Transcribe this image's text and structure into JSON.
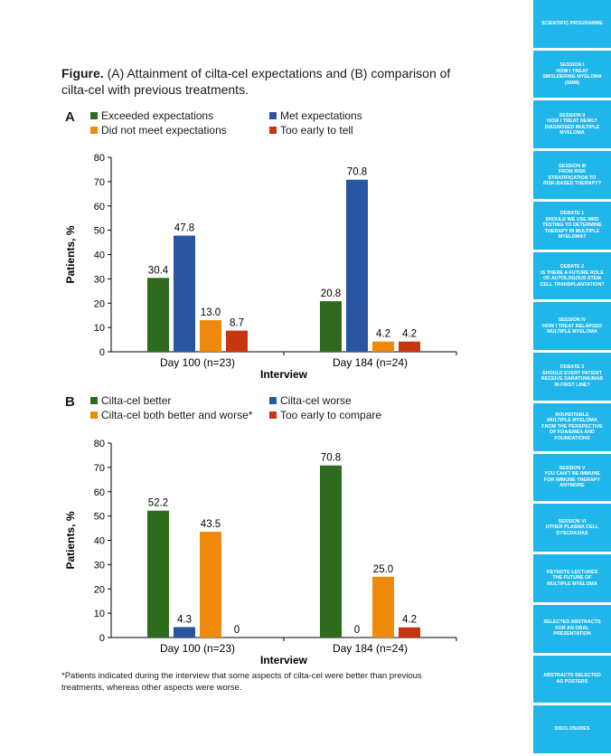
{
  "figure": {
    "title_bold": "Figure.",
    "title_rest": "(A) Attainment of cilta-cel expectations and (B) comparison of cilta-cel with previous treatments."
  },
  "panel_a": {
    "letter": "A",
    "legend": [
      {
        "label": "Exceeded expectations",
        "color": "#2e6b1e"
      },
      {
        "label": "Met expectations",
        "color": "#2a55a3"
      },
      {
        "label": "Did not meet expectations",
        "color": "#f08a0c"
      },
      {
        "label": "Too early to tell",
        "color": "#c7360e"
      }
    ]
  },
  "panel_b": {
    "letter": "B",
    "legend": [
      {
        "label": "Cilta-cel better",
        "color": "#2e6b1e"
      },
      {
        "label": "Cilta-cel worse",
        "color": "#2a55a3"
      },
      {
        "label": "Cilta-cel both better and worse*",
        "color": "#f08a0c"
      },
      {
        "label": "Too early to compare",
        "color": "#c7360e"
      }
    ]
  },
  "chart_data": [
    {
      "type": "bar",
      "categories": [
        "Day 100 (n=23)",
        "Day 184 (n=24)"
      ],
      "series": [
        {
          "name": "Exceeded expectations",
          "values": [
            30.4,
            20.8
          ],
          "labels": [
            "30.4",
            "20.8"
          ],
          "color": "#2e6b1e"
        },
        {
          "name": "Met expectations",
          "values": [
            47.8,
            70.8
          ],
          "labels": [
            "47.8",
            "70.8"
          ],
          "color": "#2a55a3"
        },
        {
          "name": "Did not meet expectations",
          "values": [
            13.0,
            4.2
          ],
          "labels": [
            "13.0",
            "4.2"
          ],
          "color": "#f08a0c"
        },
        {
          "name": "Too early to tell",
          "values": [
            8.7,
            4.2
          ],
          "labels": [
            "8.7",
            "4.2"
          ],
          "color": "#c7360e"
        }
      ],
      "xlabel": "Interview",
      "ylabel": "Patients, %",
      "ylim": [
        0,
        80
      ],
      "yticks": [
        "0",
        "10",
        "20",
        "30",
        "40",
        "50",
        "60",
        "70",
        "80"
      ],
      "grid": false,
      "legend_position": "top"
    },
    {
      "type": "bar",
      "categories": [
        "Day 100 (n=23)",
        "Day 184 (n=24)"
      ],
      "series": [
        {
          "name": "Cilta-cel better",
          "values": [
            52.2,
            70.8
          ],
          "labels": [
            "52.2",
            "70.8"
          ],
          "color": "#2e6b1e"
        },
        {
          "name": "Cilta-cel worse",
          "values": [
            4.3,
            0
          ],
          "labels": [
            "4.3",
            "0"
          ],
          "color": "#2a55a3"
        },
        {
          "name": "Cilta-cel both better and worse*",
          "values": [
            43.5,
            25.0
          ],
          "labels": [
            "43.5",
            "25.0"
          ],
          "color": "#f08a0c"
        },
        {
          "name": "Too early to compare",
          "values": [
            0,
            4.2
          ],
          "labels": [
            "0",
            "4.2"
          ],
          "color": "#c7360e"
        }
      ],
      "xlabel": "Interview",
      "ylabel": "Patients, %",
      "ylim": [
        0,
        80
      ],
      "yticks": [
        "0",
        "10",
        "20",
        "30",
        "40",
        "50",
        "60",
        "70",
        "80"
      ],
      "grid": false,
      "legend_position": "top"
    }
  ],
  "footnote": "*Patients indicated during the interview that some aspects of cilta-cel were better than previous treatments, whereas other aspects were worse.",
  "sidebar": {
    "accent": "#21b6ea",
    "items": [
      {
        "lines": [
          "SCIENTIFIC PROGRAMME"
        ]
      },
      {
        "lines": [
          "SESSION I",
          "HOW I TREAT",
          "SMOLDERING MYELOMA",
          "(SMM)"
        ]
      },
      {
        "lines": [
          "SESSION II",
          "HOW I TREAT NEWLY",
          "DIAGNOSED MULTIPLE",
          "MYELOMA"
        ]
      },
      {
        "lines": [
          "SESSION III",
          "FROM RISK",
          "STRATIFICATION TO",
          "RISK-BASED THERAPY?"
        ]
      },
      {
        "lines": [
          "DEBATE 1",
          "SHOULD WE USE MRD",
          "TESTING TO DETERMINE",
          "THERAPY IN MULTIPLE",
          "MYELOMA?"
        ]
      },
      {
        "lines": [
          "DEBATE 2",
          "IS THERE A FUTURE ROLE",
          "OF AUTOLOGOUS STEM",
          "CELL TRANSPLANTATION?"
        ]
      },
      {
        "lines": [
          "SESSION IV",
          "HOW I TREAT RELAPSED",
          "MULTIPLE MYELOMA"
        ]
      },
      {
        "lines": [
          "DEBATE 3",
          "SHOULD EVERY PATIENT",
          "RECEIVE DARATUMUMAB",
          "IN FIRST LINE?"
        ]
      },
      {
        "lines": [
          "ROUNDTABLE",
          "MULTIPLE MYELOMA",
          "FROM THE PERSPECTIVE",
          "OF FDA/EMEA AND",
          "FOUNDATIONS"
        ]
      },
      {
        "lines": [
          "SESSION V",
          "YOU CAN'T BE IMMUNE",
          "FOR IMMUNE THERAPY",
          "ANYMORE"
        ]
      },
      {
        "lines": [
          "SESSION VI",
          "OTHER PLASMA CELL",
          "DYSCRASIAS"
        ]
      },
      {
        "lines": [
          "KEYNOTE LECTURES",
          "THE FUTURE OF",
          "MULTIPLE MYELOMA"
        ]
      },
      {
        "lines": [
          "SELECTED ABSTRACTS",
          "FOR AN ORAL",
          "PRESENTATION"
        ]
      },
      {
        "lines": [
          "ABSTRACTS SELECTED",
          "AS POSTERS"
        ]
      },
      {
        "lines": [
          "DISCLOSURES"
        ]
      }
    ]
  }
}
